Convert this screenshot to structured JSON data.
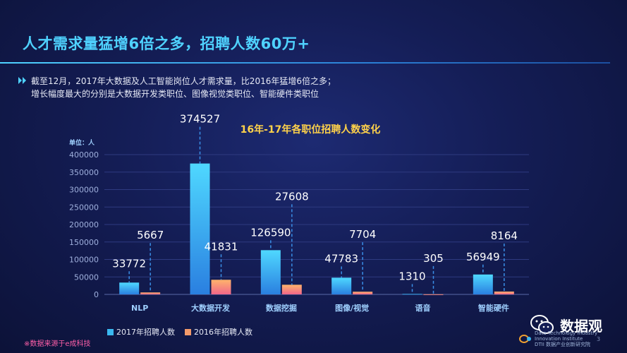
{
  "header": {
    "title": "人才需求量猛增6倍之多，招聘人数60万+"
  },
  "intro": {
    "line1": "截至12月，2017年大数据及人工智能岗位人才需求量，比2016年猛增6倍之多；",
    "line2": "增长幅度最大的分别是大数据开发类职位、图像视觉类职位、智能硬件类职位"
  },
  "colors": {
    "title": "#4fd2ff",
    "chart_title": "#ffd24a",
    "series_2017": "#3ab8f0",
    "series_2016": "#f39a6a",
    "source_note": "#ff5fa8"
  },
  "chart_data": {
    "type": "bar",
    "title": "16年-17年各职位招聘人数变化",
    "unit_label": "单位：人",
    "xlabel": "",
    "ylabel": "",
    "categories": [
      "NLP",
      "大数据开发",
      "数据挖掘",
      "图像/视觉",
      "语音",
      "智能硬件"
    ],
    "series": [
      {
        "name": "2017年招聘人数",
        "values": [
          33772,
          374527,
          126590,
          47783,
          1310,
          56949
        ]
      },
      {
        "name": "2016年招聘人数",
        "values": [
          5667,
          41831,
          27608,
          7704,
          305,
          8164
        ]
      }
    ],
    "ylim": [
      0,
      400000
    ],
    "yticks": [
      0,
      50000,
      100000,
      150000,
      200000,
      250000,
      300000,
      350000,
      400000
    ],
    "grid": true,
    "legend_position": "bottom-left"
  },
  "footer": {
    "source": "※数据来源于e成科技",
    "brand_line1": "Data Technology Industry",
    "brand_line2": "Innovation Institute",
    "brand_line3": "DTII 数据产业创新研究院",
    "page_number": "3",
    "wechat_name": "数据观"
  }
}
